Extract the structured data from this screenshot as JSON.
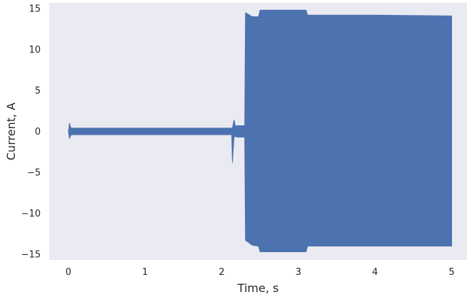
{
  "chart_data": {
    "type": "line",
    "title": "",
    "xlabel": "Time, s",
    "ylabel": "Current, A",
    "xlim": [
      -0.25,
      5.2
    ],
    "ylim": [
      -15.7,
      15.7
    ],
    "xticks": [
      0,
      1,
      2,
      3,
      4,
      5
    ],
    "yticks": [
      -15,
      -10,
      -5,
      0,
      5,
      10,
      15
    ],
    "ytick_labels": [
      "−15",
      "−10",
      "−5",
      "0",
      "5",
      "10",
      "15"
    ],
    "grid": false,
    "legend": "none",
    "background_color": "#eaeaf2",
    "series": [
      {
        "color": "#4c72b0",
        "envelope": {
          "x": [
            0.0,
            0.015,
            0.03,
            0.05,
            1.0,
            2.0,
            2.13,
            2.14,
            2.16,
            2.18,
            2.2,
            2.3,
            2.31,
            2.4,
            2.48,
            2.5,
            3.1,
            3.12,
            4.0,
            5.0
          ],
          "y_max": [
            0.0,
            1.0,
            0.45,
            0.4,
            0.4,
            0.4,
            0.4,
            0.4,
            1.4,
            0.6,
            0.7,
            0.7,
            14.5,
            14.0,
            14.0,
            14.8,
            14.8,
            14.2,
            14.2,
            14.1
          ],
          "y_min": [
            0.0,
            -0.9,
            -0.45,
            -0.4,
            -0.4,
            -0.4,
            -0.4,
            -3.8,
            -0.7,
            -0.6,
            -0.7,
            -0.7,
            -13.3,
            -13.9,
            -14.0,
            -14.7,
            -14.7,
            -14.0,
            -14.0,
            -14.0
          ]
        }
      }
    ]
  }
}
